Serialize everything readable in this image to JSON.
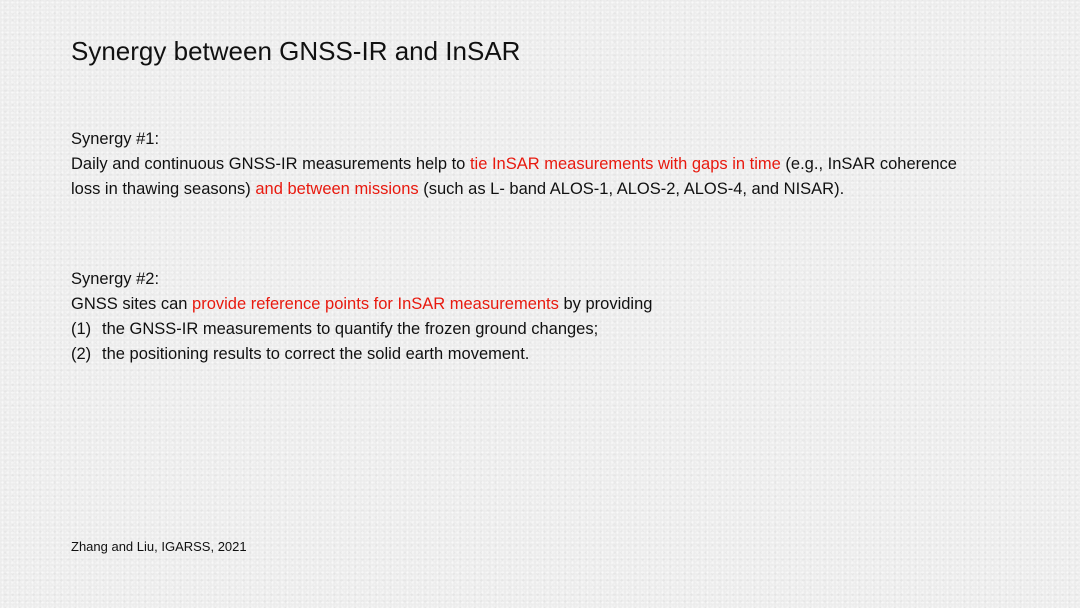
{
  "slide": {
    "title": "Synergy between GNSS-IR and InSAR",
    "synergy1": {
      "heading": "Synergy #1:",
      "text_part1": "Daily and continuous GNSS-IR measurements help to ",
      "highlight1": "tie InSAR measurements with gaps in time",
      "text_part2": " (e.g., InSAR coherence loss in thawing seasons) ",
      "highlight2": "and between missions",
      "text_part3": " (such as L- band ALOS-1, ALOS-2, ALOS-4, and NISAR)."
    },
    "synergy2": {
      "heading": "Synergy #2:",
      "text_part1": "GNSS sites can ",
      "highlight1": "provide reference points for InSAR measurements",
      "text_part2": " by providing",
      "items": [
        {
          "number": "(1)",
          "text": "the GNSS-IR measurements to quantify the frozen ground changes;"
        },
        {
          "number": "(2)",
          "text": "the positioning results to correct the solid earth movement."
        }
      ]
    },
    "citation": "Zhang and Liu, IGARSS, 2021",
    "colors": {
      "highlight": "#e8190e",
      "text": "#111111",
      "background": "#ebebeb"
    }
  }
}
